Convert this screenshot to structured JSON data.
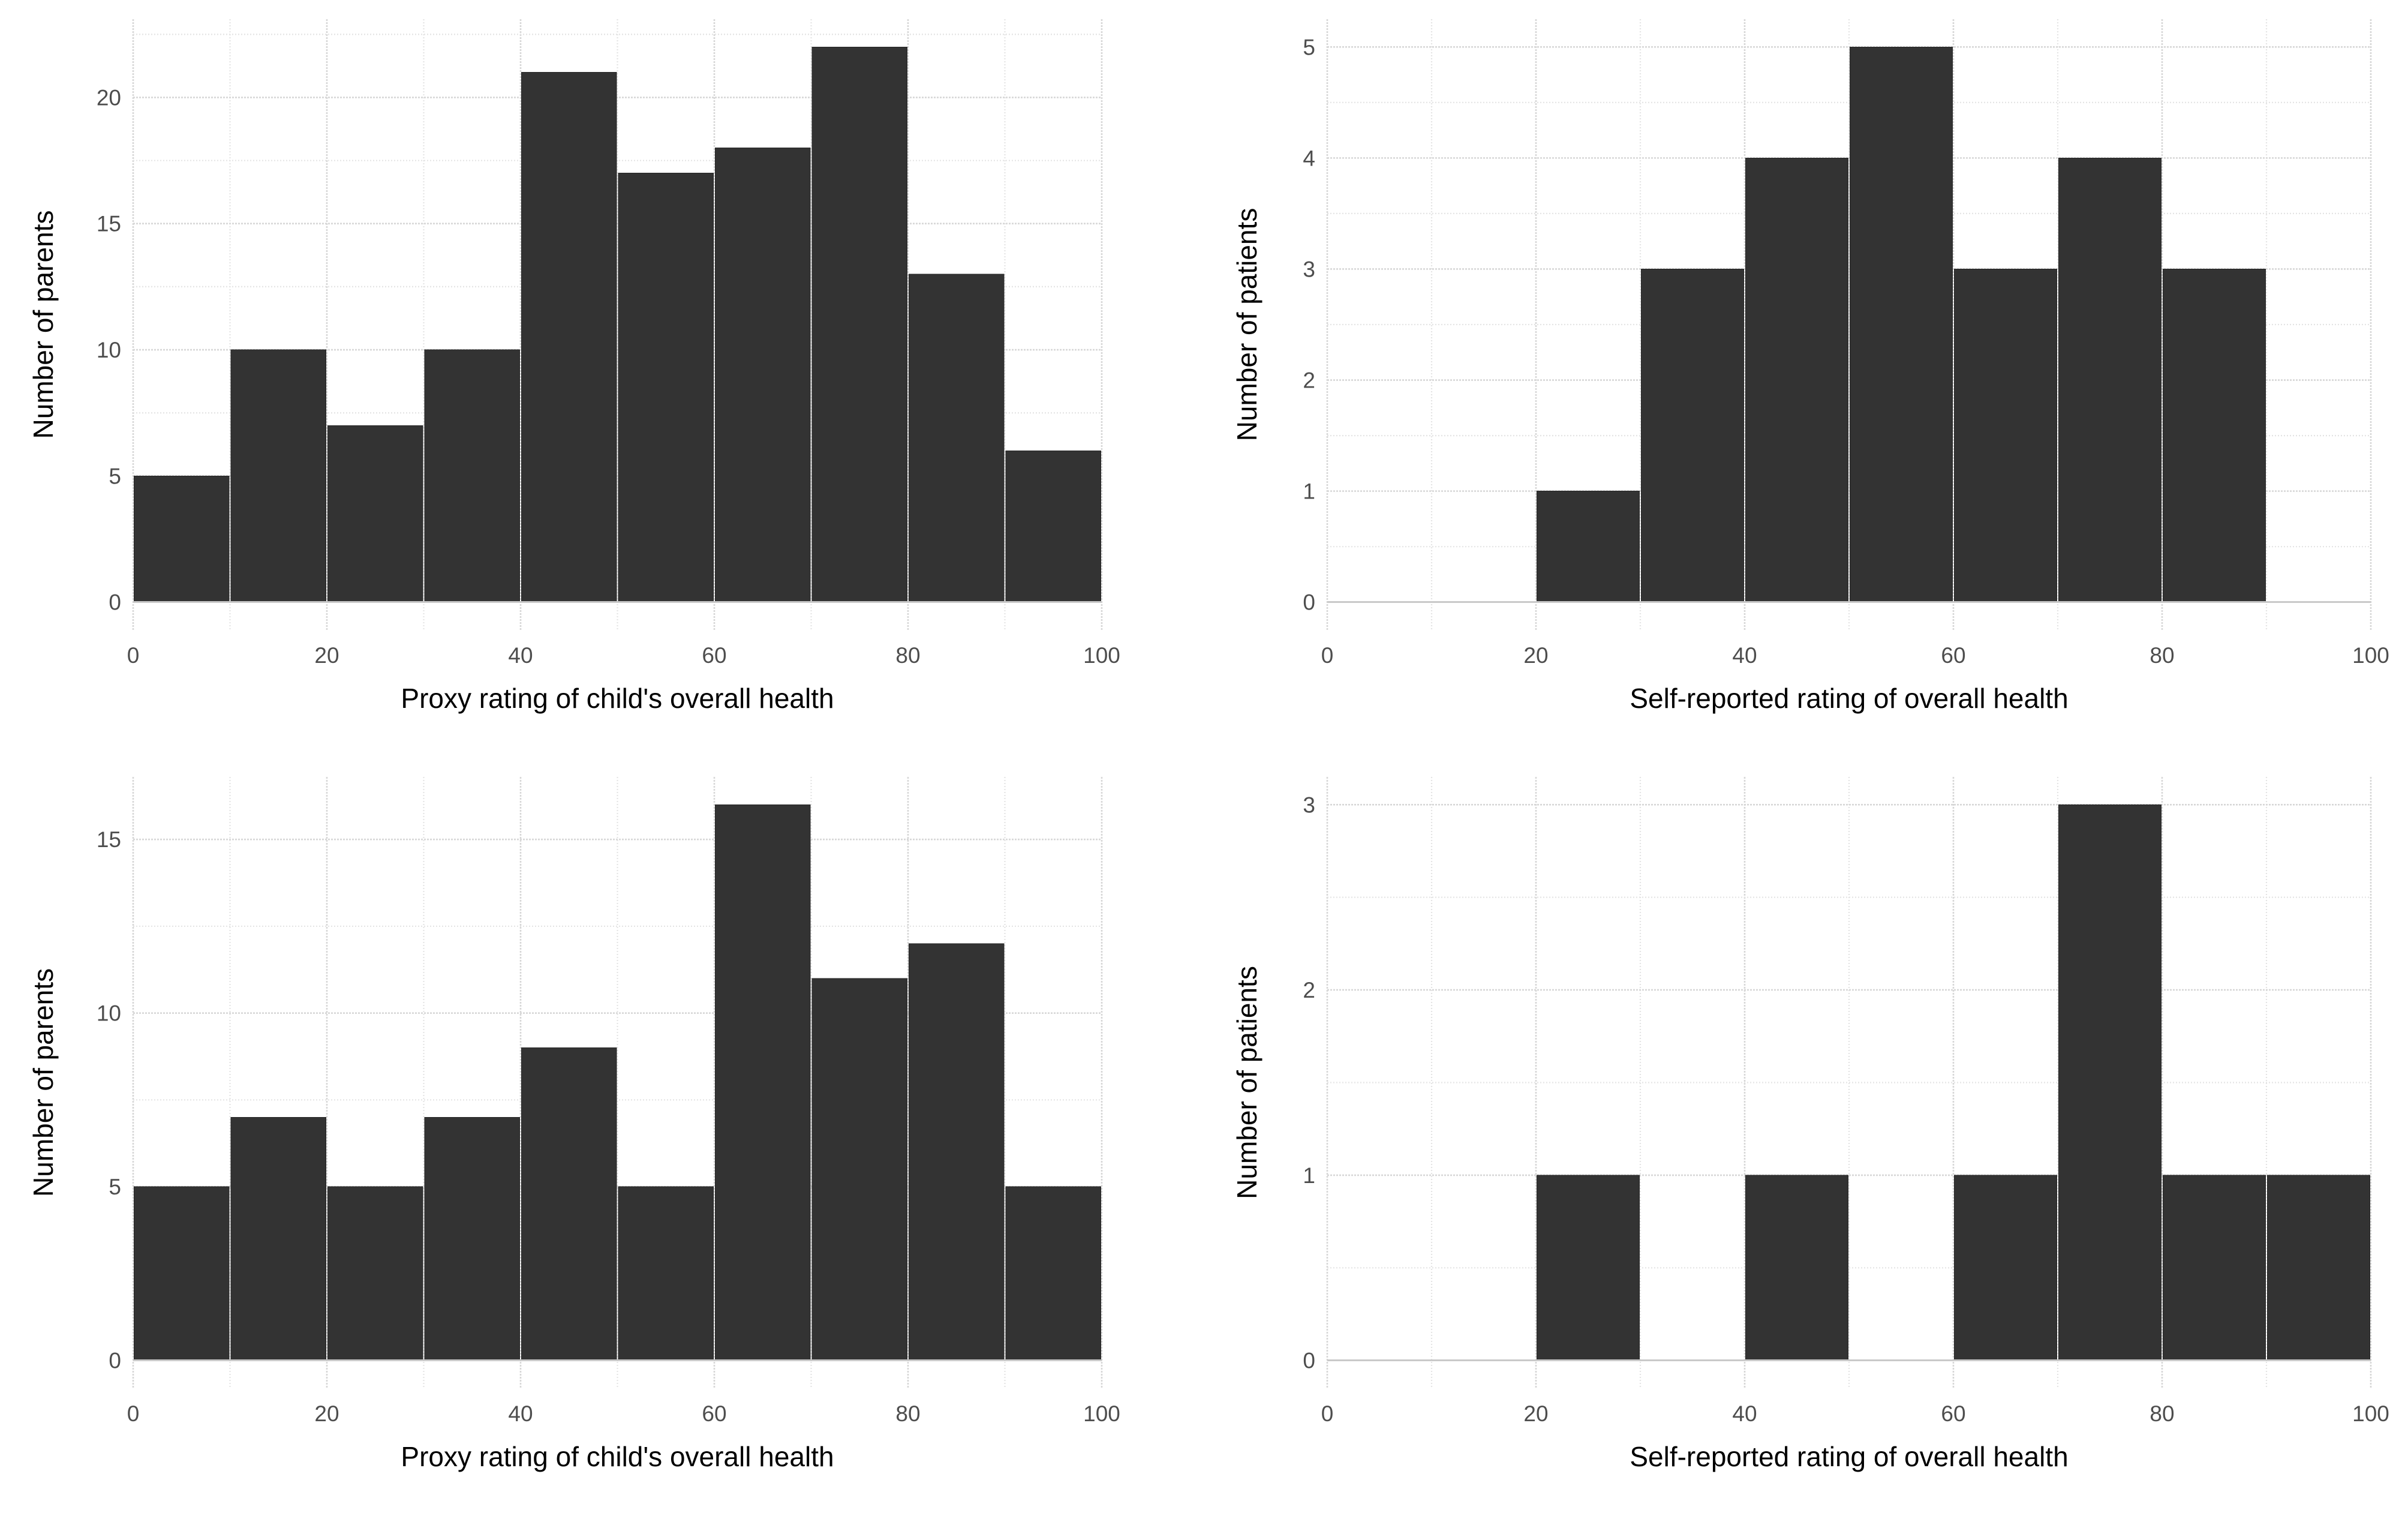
{
  "figure": {
    "background": "#FFFFFF",
    "description": "2x2 grid of histograms comparing proxy and self-reported health ratings"
  },
  "style": {
    "bar_fill": "#333333",
    "grid_major_color": "#D7D7D7",
    "grid_minor_color": "#E4E4E4",
    "baseline_color": "#C9C9C9",
    "tick_label_color": "#4D4D4D",
    "axis_title_color": "#000000"
  },
  "chart_data": [
    {
      "position": "top-left",
      "type": "bar",
      "subtype": "histogram",
      "xlabel": "Proxy rating of child's overall health",
      "ylabel": "Number of parents",
      "bin_start": 0,
      "bin_width": 10,
      "values": [
        5,
        10,
        7,
        10,
        21,
        17,
        18,
        22,
        13,
        6
      ],
      "xlim": [
        0,
        100
      ],
      "x_ticks": [
        0,
        20,
        40,
        60,
        80,
        100
      ],
      "x_minor_gridlines": [
        10,
        30,
        50,
        70,
        90
      ],
      "y_ticks": [
        0,
        5,
        10,
        15,
        20
      ],
      "y_minor_gridlines": [
        2.5,
        7.5,
        12.5,
        17.5,
        22.5
      ],
      "grid": true,
      "legend": false
    },
    {
      "position": "top-right",
      "type": "bar",
      "subtype": "histogram",
      "xlabel": "Self-reported rating of overall health",
      "ylabel": "Number of patients",
      "bin_start": 0,
      "bin_width": 10,
      "values": [
        0,
        0,
        1,
        3,
        4,
        5,
        3,
        4,
        3,
        0
      ],
      "xlim": [
        0,
        100
      ],
      "x_ticks": [
        0,
        20,
        40,
        60,
        80,
        100
      ],
      "x_minor_gridlines": [
        10,
        30,
        50,
        70,
        90
      ],
      "y_ticks": [
        0,
        1,
        2,
        3,
        4,
        5
      ],
      "y_minor_gridlines": [
        0.5,
        1.5,
        2.5,
        3.5,
        4.5
      ],
      "grid": true,
      "legend": false
    },
    {
      "position": "bottom-left",
      "type": "bar",
      "subtype": "histogram",
      "xlabel": "Proxy rating of child's overall health",
      "ylabel": "Number of parents",
      "bin_start": 0,
      "bin_width": 10,
      "values": [
        5,
        7,
        5,
        7,
        9,
        5,
        16,
        11,
        12,
        5
      ],
      "xlim": [
        0,
        100
      ],
      "x_ticks": [
        0,
        20,
        40,
        60,
        80,
        100
      ],
      "x_minor_gridlines": [
        10,
        30,
        50,
        70,
        90
      ],
      "y_ticks": [
        0,
        5,
        10,
        15
      ],
      "y_minor_gridlines": [
        2.5,
        7.5,
        12.5
      ],
      "grid": true,
      "legend": false
    },
    {
      "position": "bottom-right",
      "type": "bar",
      "subtype": "histogram",
      "xlabel": "Self-reported rating of overall health",
      "ylabel": "Number of patients",
      "bin_start": 0,
      "bin_width": 10,
      "values": [
        0,
        0,
        1,
        0,
        1,
        0,
        1,
        3,
        1,
        1
      ],
      "xlim": [
        0,
        100
      ],
      "x_ticks": [
        0,
        20,
        40,
        60,
        80,
        100
      ],
      "x_minor_gridlines": [
        10,
        30,
        50,
        70,
        90
      ],
      "y_ticks": [
        0,
        1,
        2,
        3
      ],
      "y_minor_gridlines": [
        0.5,
        1.5,
        2.5
      ],
      "grid": true,
      "legend": false
    }
  ]
}
